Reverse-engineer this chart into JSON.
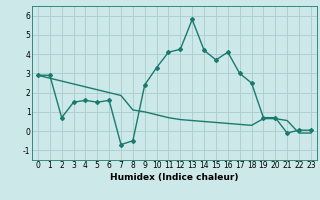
{
  "title": "",
  "xlabel": "Humidex (Indice chaleur)",
  "background_color": "#cce8e8",
  "grid_color": "#aacccc",
  "line_color": "#1a7a6e",
  "line1_x": [
    0,
    1,
    2,
    3,
    4,
    5,
    6,
    7,
    8,
    9,
    10,
    11,
    12,
    13,
    14,
    15,
    16,
    17,
    18,
    19,
    20,
    21,
    22,
    23
  ],
  "line1_y": [
    2.9,
    2.9,
    0.7,
    1.5,
    1.6,
    1.5,
    1.6,
    -0.7,
    -0.5,
    2.4,
    3.3,
    4.1,
    4.25,
    5.8,
    4.2,
    3.7,
    4.1,
    3.0,
    2.5,
    0.7,
    0.7,
    -0.1,
    0.05,
    0.05
  ],
  "line2_x": [
    0,
    1,
    2,
    3,
    4,
    5,
    6,
    7,
    8,
    9,
    10,
    11,
    12,
    13,
    14,
    15,
    16,
    17,
    18,
    19,
    20,
    21,
    22,
    23
  ],
  "line2_y": [
    2.9,
    2.75,
    2.6,
    2.45,
    2.3,
    2.15,
    2.0,
    1.85,
    1.1,
    1.0,
    0.85,
    0.7,
    0.6,
    0.55,
    0.5,
    0.45,
    0.4,
    0.35,
    0.3,
    0.65,
    0.65,
    0.55,
    -0.1,
    -0.1
  ],
  "ylim": [
    -1.5,
    6.5
  ],
  "xlim": [
    -0.5,
    23.5
  ],
  "yticks": [
    -1,
    0,
    1,
    2,
    3,
    4,
    5,
    6
  ],
  "xtick_labels": [
    "0",
    "1",
    "2",
    "3",
    "4",
    "5",
    "6",
    "7",
    "8",
    "9",
    "10",
    "11",
    "12",
    "13",
    "14",
    "15",
    "16",
    "17",
    "18",
    "19",
    "20",
    "21",
    "22",
    "23"
  ],
  "xtick_positions": [
    0,
    1,
    2,
    3,
    4,
    5,
    6,
    7,
    8,
    9,
    10,
    11,
    12,
    13,
    14,
    15,
    16,
    17,
    18,
    19,
    20,
    21,
    22,
    23
  ],
  "marker": "D",
  "marker_size": 2,
  "linewidth": 1.0,
  "font_size": 5.5,
  "xlabel_fontsize": 6.5
}
